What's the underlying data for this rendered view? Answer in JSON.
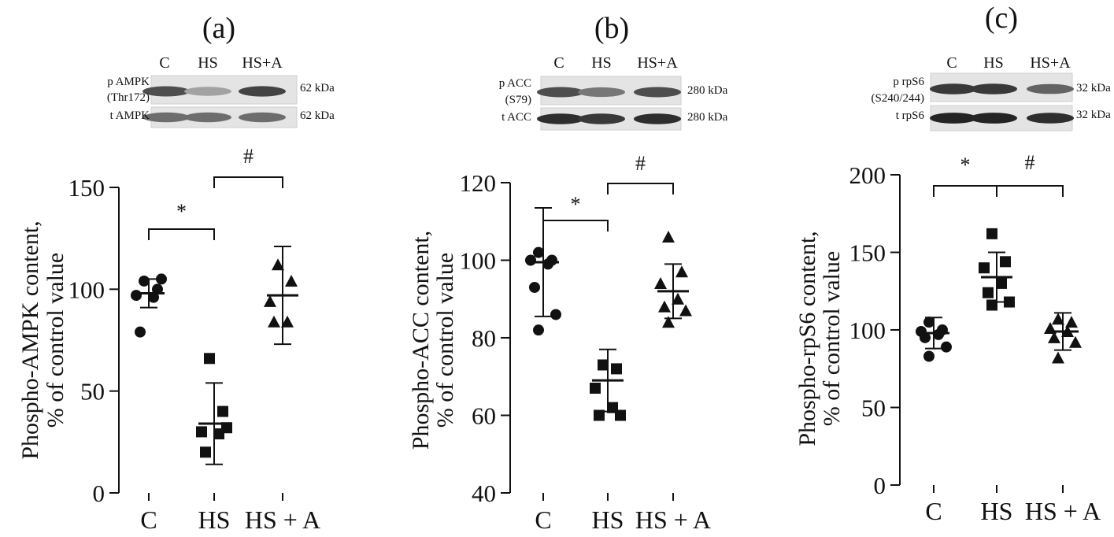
{
  "figure": {
    "panels": [
      {
        "letter": "(a)",
        "blot": {
          "lanes": [
            "C",
            "HS",
            "HS+A"
          ],
          "rows": [
            {
              "label": [
                "p AMPK",
                "(Thr172)"
              ],
              "kda": "62 kDa",
              "band_intensity": [
                0.75,
                0.35,
                0.8
              ]
            },
            {
              "label": [
                "t AMPK"
              ],
              "kda": "62 kDa",
              "band_intensity": [
                0.6,
                0.6,
                0.6
              ]
            }
          ]
        },
        "significance": [
          {
            "from": 0,
            "to": 1,
            "label": "*",
            "level": 1
          },
          {
            "from": 1,
            "to": 2,
            "label": "#",
            "level": 2
          }
        ]
      },
      {
        "letter": "(b)",
        "blot": {
          "lanes": [
            "C",
            "HS",
            "HS+A"
          ],
          "rows": [
            {
              "label": [
                "p ACC",
                "(S79)"
              ],
              "kda": "280 kDa",
              "band_intensity": [
                0.75,
                0.55,
                0.75
              ]
            },
            {
              "label": [
                "t ACC"
              ],
              "kda": "280 kDa",
              "band_intensity": [
                0.9,
                0.85,
                0.9
              ]
            }
          ]
        },
        "significance": [
          {
            "from": 0,
            "to": 1,
            "label": "*",
            "level": 1
          },
          {
            "from": 1,
            "to": 2,
            "label": "#",
            "level": 2
          }
        ]
      },
      {
        "letter": "(c)",
        "blot": {
          "lanes": [
            "C",
            "HS",
            "HS+A"
          ],
          "rows": [
            {
              "label": [
                "p rpS6",
                "(S240/244)"
              ],
              "kda": "32 kDa",
              "band_intensity": [
                0.85,
                0.85,
                0.65
              ]
            },
            {
              "label": [
                "t rpS6"
              ],
              "kda": "32 kDa",
              "band_intensity": [
                0.95,
                0.95,
                0.9
              ]
            }
          ]
        },
        "significance": [
          {
            "from": 0,
            "to": 1,
            "label": "*",
            "level": 1
          },
          {
            "from": 1,
            "to": 2,
            "label": "#",
            "level": 1
          }
        ]
      }
    ]
  },
  "chart_data": [
    {
      "type": "scatter",
      "title": "(a)",
      "ylabel": [
        "Phospho-AMPK content,",
        "% of control value"
      ],
      "categories": [
        "C",
        "HS",
        "HS + A"
      ],
      "ylim": [
        0,
        150
      ],
      "yticks": [
        0,
        50,
        100,
        150
      ],
      "markers": [
        "circle",
        "square",
        "triangle"
      ],
      "points": [
        [
          104,
          100,
          97,
          96,
          79,
          105
        ],
        [
          66,
          40,
          30,
          29,
          20,
          32
        ],
        [
          112,
          104,
          94,
          84,
          84
        ]
      ],
      "means": [
        98,
        34,
        97
      ],
      "sd": [
        7,
        20,
        24
      ]
    },
    {
      "type": "scatter",
      "title": "(b)",
      "ylabel": [
        "Phospho-ACC content,",
        "% of control value"
      ],
      "categories": [
        "C",
        "HS",
        "HS + A"
      ],
      "ylim": [
        40,
        120
      ],
      "yticks": [
        40,
        60,
        80,
        100,
        120
      ],
      "markers": [
        "circle",
        "square",
        "triangle"
      ],
      "points": [
        [
          102,
          100,
          100,
          99,
          93,
          86,
          82
        ],
        [
          73,
          72,
          67,
          62,
          60,
          60
        ],
        [
          106,
          97,
          94,
          90,
          88,
          87,
          84
        ]
      ],
      "means": [
        99.5,
        69,
        92
      ],
      "sd": [
        14,
        8,
        7
      ]
    },
    {
      "type": "scatter",
      "title": "(c)",
      "ylabel": [
        "Phospho-rpS6 content,",
        "% of control value"
      ],
      "categories": [
        "C",
        "HS",
        "HS + A"
      ],
      "ylim": [
        0,
        200
      ],
      "yticks": [
        0,
        50,
        100,
        150,
        200
      ],
      "markers": [
        "circle",
        "square",
        "triangle"
      ],
      "points": [
        [
          105,
          100,
          99,
          97,
          95,
          89,
          83
        ],
        [
          162,
          144,
          140,
          130,
          124,
          118,
          116
        ],
        [
          107,
          105,
          101,
          99,
          95,
          92,
          82
        ]
      ],
      "means": [
        98,
        134,
        99
      ],
      "sd": [
        10,
        16,
        12
      ]
    }
  ]
}
